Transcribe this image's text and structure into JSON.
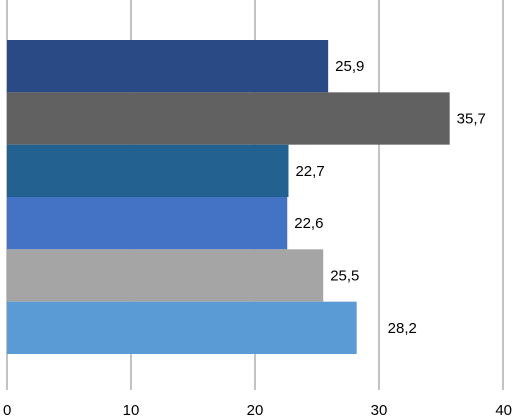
{
  "chart_data": {
    "type": "bar",
    "orientation": "horizontal",
    "categories": [
      "",
      "",
      "",
      "",
      "",
      ""
    ],
    "values": [
      25.9,
      35.7,
      22.7,
      22.6,
      25.5,
      28.2
    ],
    "data_labels": [
      "25,9",
      "35,7",
      "22,7",
      "22,6",
      "25,5",
      "28,2"
    ],
    "bar_colors": [
      "#2a4a85",
      "#616161",
      "#236191",
      "#4472c4",
      "#a5a5a5",
      "#5b9bd5"
    ],
    "xlim": [
      0,
      40
    ],
    "x_ticks": [
      0,
      10,
      20,
      30,
      40
    ],
    "x_tick_labels": [
      "0",
      "10",
      "20",
      "30",
      "40"
    ],
    "grid": "vertical",
    "legend": "none",
    "title": "",
    "xlabel": "",
    "ylabel": ""
  }
}
